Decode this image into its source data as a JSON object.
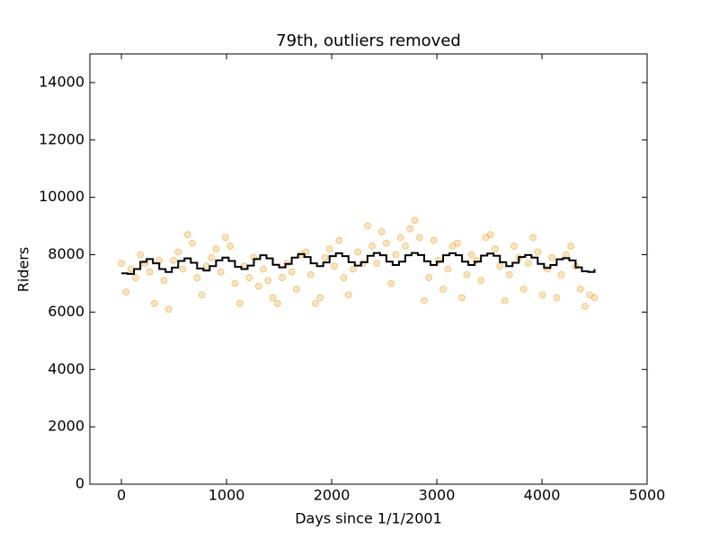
{
  "chart_data": {
    "type": "scatter",
    "title": "79th, outliers removed",
    "x_label": "Days since 1/1/2001",
    "y_label": "Riders",
    "xlim": [
      -300,
      5000
    ],
    "xticks": [
      0,
      1000,
      2000,
      3000,
      4000,
      5000
    ],
    "ylim": [
      0,
      15000
    ],
    "yticks": [
      0,
      2000,
      4000,
      6000,
      8000,
      10000,
      12000,
      14000
    ],
    "series": [
      {
        "type": "scatter",
        "color": "#e69500",
        "x": [
          0,
          45,
          90,
          135,
          180,
          225,
          270,
          315,
          360,
          405,
          450,
          495,
          540,
          585,
          630,
          675,
          720,
          765,
          810,
          855,
          900,
          945,
          990,
          1035,
          1080,
          1125,
          1170,
          1215,
          1260,
          1305,
          1350,
          1395,
          1440,
          1485,
          1530,
          1575,
          1620,
          1665,
          1710,
          1755,
          1800,
          1845,
          1890,
          1935,
          1980,
          2025,
          2070,
          2115,
          2160,
          2205,
          2250,
          2295,
          2340,
          2385,
          2430,
          2475,
          2520,
          2565,
          2610,
          2655,
          2700,
          2745,
          2790,
          2835,
          2880,
          2925,
          2970,
          3015,
          3060,
          3105,
          3150,
          3195,
          3240,
          3285,
          3330,
          3375,
          3420,
          3465,
          3510,
          3555,
          3600,
          3645,
          3690,
          3735,
          3780,
          3825,
          3870,
          3915,
          3960,
          4005,
          4050,
          4095,
          4140,
          4185,
          4230,
          4275,
          4320,
          4365,
          4410,
          4455,
          4500
        ],
        "values": [
          7700,
          6700,
          7500,
          7200,
          8000,
          7700,
          7400,
          6300,
          7800,
          7100,
          6100,
          7800,
          8100,
          7500,
          8700,
          8400,
          7200,
          6600,
          7600,
          7900,
          8200,
          7400,
          8600,
          8300,
          7000,
          6300,
          7600,
          7200,
          7900,
          6900,
          7500,
          7100,
          6500,
          6300,
          7200,
          7700,
          7400,
          6800,
          8000,
          8100,
          7300,
          6300,
          6500,
          7900,
          8200,
          7600,
          8500,
          7200,
          6600,
          7500,
          8100,
          7700,
          9000,
          8300,
          7700,
          8800,
          8400,
          7000,
          8000,
          8600,
          8300,
          8900,
          9200,
          8600,
          6400,
          7200,
          8500,
          7800,
          6800,
          7500,
          8300,
          8400,
          6500,
          7300,
          8000,
          7800,
          7100,
          8600,
          8700,
          8200,
          7600,
          6400,
          7300,
          8300,
          7900,
          6800,
          7700,
          8600,
          8100,
          6600,
          7500,
          7900,
          6500,
          7300,
          8000,
          8300,
          7600,
          6800,
          6200,
          6600,
          6500
        ]
      },
      {
        "type": "line",
        "color": "#000000",
        "drawstyle": "steps-post",
        "x": [
          0,
          60,
          120,
          180,
          240,
          300,
          360,
          420,
          480,
          540,
          600,
          660,
          720,
          780,
          840,
          900,
          960,
          1020,
          1080,
          1140,
          1200,
          1260,
          1320,
          1380,
          1440,
          1500,
          1560,
          1620,
          1680,
          1740,
          1800,
          1860,
          1920,
          1980,
          2040,
          2100,
          2160,
          2220,
          2280,
          2340,
          2400,
          2460,
          2520,
          2580,
          2640,
          2700,
          2760,
          2820,
          2880,
          2940,
          3000,
          3060,
          3120,
          3180,
          3240,
          3300,
          3360,
          3420,
          3480,
          3540,
          3600,
          3660,
          3720,
          3780,
          3840,
          3900,
          3960,
          4020,
          4080,
          4140,
          4200,
          4260,
          4320,
          4380,
          4440,
          4500
        ],
        "values": [
          7350,
          7330,
          7500,
          7750,
          7850,
          7700,
          7500,
          7400,
          7550,
          7780,
          7870,
          7720,
          7520,
          7450,
          7600,
          7800,
          7900,
          7780,
          7580,
          7500,
          7620,
          7850,
          7980,
          7870,
          7650,
          7560,
          7680,
          7900,
          8020,
          7920,
          7700,
          7600,
          7730,
          7950,
          8050,
          7950,
          7740,
          7620,
          7740,
          7960,
          8060,
          7980,
          7760,
          7640,
          7760,
          7980,
          8060,
          7990,
          7770,
          7640,
          7760,
          7980,
          8050,
          7980,
          7760,
          7640,
          7760,
          7970,
          8040,
          7960,
          7740,
          7600,
          7720,
          7920,
          7990,
          7900,
          7680,
          7540,
          7640,
          7840,
          7880,
          7800,
          7560,
          7420,
          7400,
          7500
        ]
      }
    ]
  }
}
